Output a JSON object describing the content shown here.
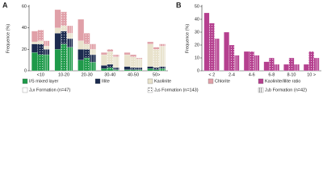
{
  "chart_data": [
    {
      "type": "stacked-grouped-bar",
      "panel": "A",
      "y_label": "Frequence (%)",
      "categories": [
        "<10",
        "10-20",
        "20-30",
        "30-40",
        "40-50",
        "50>"
      ],
      "ylim": [
        0,
        60
      ],
      "yticks": [
        0,
        20,
        40,
        60
      ],
      "groups": [
        {
          "name": "J₁x Formation (n=47)",
          "pattern": "solid",
          "series": [
            {
              "name": "I/S mixed layer",
              "color": "#1f9a4a",
              "values": [
                17,
                20,
                10,
                2,
                1,
                2
              ]
            },
            {
              "name": "Illite",
              "color": "#1c2b4f",
              "values": [
                8,
                15,
                10,
                3,
                3,
                2
              ]
            },
            {
              "name": "Kaolinite",
              "color": "#e8e2cc",
              "values": [
                2,
                5,
                8,
                10,
                11,
                21
              ]
            },
            {
              "name": "Chlorite",
              "color": "#e0a0a8",
              "values": [
                10,
                17,
                20,
                2,
                2,
                2
              ]
            }
          ]
        },
        {
          "name": "J₂s Formation (n=143)",
          "pattern": "dots",
          "series": [
            {
              "name": "I/S mixed layer",
              "color": "#1f9a4a",
              "values": [
                15,
                25,
                12,
                3,
                1,
                1
              ]
            },
            {
              "name": "Illite",
              "color": "#1c2b4f",
              "values": [
                10,
                12,
                8,
                3,
                2,
                2
              ]
            },
            {
              "name": "Kaolinite",
              "color": "#e8e2cc",
              "values": [
                3,
                5,
                5,
                12,
                10,
                17
              ]
            },
            {
              "name": "Chlorite",
              "color": "#e0a0a8",
              "values": [
                10,
                13,
                10,
                2,
                2,
                2
              ]
            }
          ]
        },
        {
          "name": "J₃b Formation (n=42)",
          "pattern": "vlines",
          "series": [
            {
              "name": "I/S mixed layer",
              "color": "#1f9a4a",
              "values": [
                15,
                22,
                8,
                1,
                1,
                2
              ]
            },
            {
              "name": "Illite",
              "color": "#1c2b4f",
              "values": [
                5,
                8,
                7,
                2,
                2,
                2
              ]
            },
            {
              "name": "Kaolinite",
              "color": "#e8e2cc",
              "values": [
                3,
                5,
                5,
                10,
                8,
                19
              ]
            },
            {
              "name": "Chlorite",
              "color": "#e0a0a8",
              "values": [
                5,
                7,
                5,
                2,
                1,
                2
              ]
            }
          ]
        }
      ]
    },
    {
      "type": "grouped-bar",
      "panel": "B",
      "y_label": "Frequence (%)",
      "categories": [
        "< 2",
        "2-4",
        "4-6",
        "6-8",
        "8-10",
        "10 >"
      ],
      "ylim": [
        0,
        50
      ],
      "yticks": [
        0,
        10,
        20,
        30,
        40,
        50
      ],
      "series_name": "Kaolinite/illite ratio",
      "color": "#b5408f",
      "groups": [
        {
          "pattern": "solid",
          "values": [
            45,
            30,
            15,
            7,
            5,
            5
          ]
        },
        {
          "pattern": "dots",
          "values": [
            37,
            20,
            15,
            10,
            10,
            15
          ]
        },
        {
          "pattern": "vlines",
          "values": [
            25,
            12,
            12,
            5,
            5,
            10
          ]
        }
      ]
    }
  ]
}
